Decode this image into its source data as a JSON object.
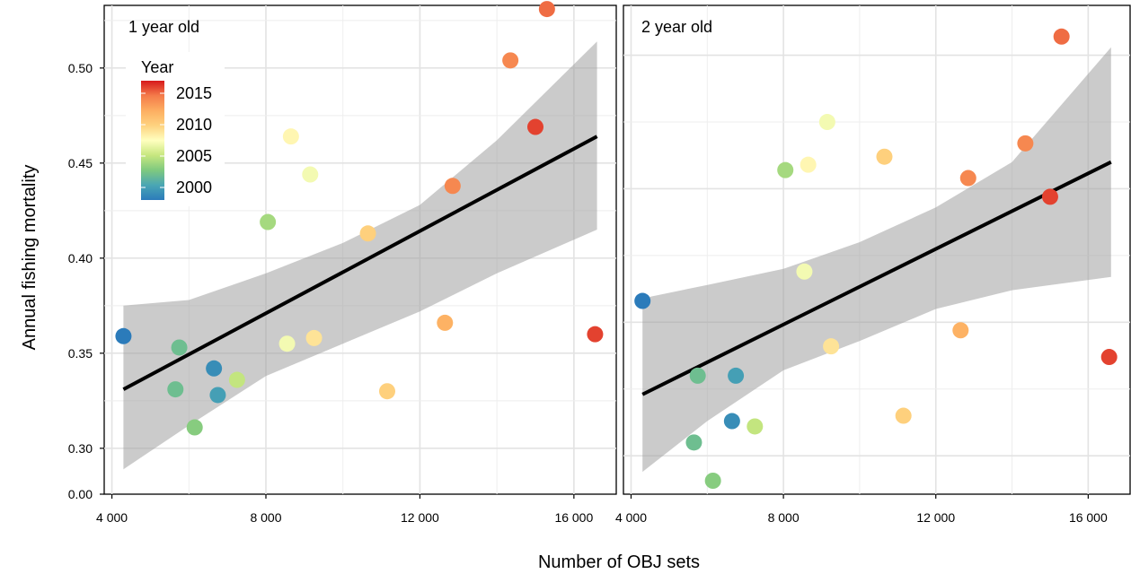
{
  "chart_data": {
    "type": "scatter",
    "xlabel": "Number of OBJ sets",
    "ylabel": "Annual fishing mortality",
    "xlim": [
      3800,
      17100
    ],
    "x_ticks": [
      4000,
      8000,
      12000,
      16000
    ],
    "x_tick_labels": [
      "4 000",
      "8 000",
      "12 000",
      "16 000"
    ],
    "y_ticks": [
      0.3,
      0.35,
      0.4,
      0.45,
      0.5
    ],
    "y_tick_labels": [
      "0.30",
      "0.35",
      "0.40",
      "0.45",
      "0.50"
    ],
    "y_break_label": "0.00",
    "grid": true,
    "legend": {
      "title": "Year",
      "placement": "top-left",
      "labels": [
        "2015",
        "2010",
        "2005",
        "2000"
      ],
      "label_years": [
        2015,
        2010,
        2005,
        2000
      ],
      "range": [
        1998,
        2017
      ],
      "colors": [
        "#2b7bba",
        "#4aa6b4",
        "#7fc97f",
        "#c7e77f",
        "#ffffbf",
        "#fed27f",
        "#fdae61",
        "#f47b4a",
        "#d7191c"
      ]
    },
    "panels": [
      {
        "title": "1 year old",
        "ylim": [
          0.282,
          0.532
        ],
        "fit": {
          "x0": 4300,
          "y0": 0.331,
          "x1": 16600,
          "y1": 0.464
        },
        "ci_x": [
          4300,
          6000,
          8000,
          10000,
          12000,
          14000,
          16600
        ],
        "ci_lower": [
          0.289,
          0.312,
          0.338,
          0.355,
          0.372,
          0.392,
          0.415
        ],
        "ci_upper": [
          0.375,
          0.378,
          0.392,
          0.408,
          0.428,
          0.462,
          0.514
        ],
        "points": [
          {
            "x": 4300,
            "y": 0.359,
            "year": 1998
          },
          {
            "x": 5750,
            "y": 0.353,
            "year": 2002
          },
          {
            "x": 5650,
            "y": 0.331,
            "year": 2002
          },
          {
            "x": 6150,
            "y": 0.311,
            "year": 2003
          },
          {
            "x": 6650,
            "y": 0.342,
            "year": 1999
          },
          {
            "x": 6750,
            "y": 0.328,
            "year": 2000
          },
          {
            "x": 7250,
            "y": 0.336,
            "year": 2005
          },
          {
            "x": 8050,
            "y": 0.419,
            "year": 2004
          },
          {
            "x": 8550,
            "y": 0.355,
            "year": 2007
          },
          {
            "x": 8650,
            "y": 0.464,
            "year": 2008
          },
          {
            "x": 9150,
            "y": 0.444,
            "year": 2007
          },
          {
            "x": 9250,
            "y": 0.358,
            "year": 2009
          },
          {
            "x": 10650,
            "y": 0.413,
            "year": 2010
          },
          {
            "x": 11150,
            "y": 0.33,
            "year": 2010
          },
          {
            "x": 12650,
            "y": 0.366,
            "year": 2012
          },
          {
            "x": 12850,
            "y": 0.438,
            "year": 2014
          },
          {
            "x": 14350,
            "y": 0.504,
            "year": 2014
          },
          {
            "x": 15000,
            "y": 0.469,
            "year": 2016
          },
          {
            "x": 15300,
            "y": 0.531,
            "year": 2015
          },
          {
            "x": 16550,
            "y": 0.36,
            "year": 2016
          }
        ]
      },
      {
        "title": "2 year old",
        "ylim": [
          0.29,
          0.468
        ],
        "fit": {
          "x0": 4300,
          "y0": 0.323,
          "x1": 16600,
          "y1": 0.41
        },
        "ci_x": [
          4300,
          6000,
          8000,
          10000,
          12000,
          14000,
          16600
        ],
        "ci_lower": [
          0.294,
          0.313,
          0.332,
          0.343,
          0.355,
          0.362,
          0.367
        ],
        "ci_upper": [
          0.359,
          0.364,
          0.37,
          0.38,
          0.393,
          0.41,
          0.453
        ],
        "points": [
          {
            "x": 4300,
            "y": 0.358,
            "year": 1998
          },
          {
            "x": 5750,
            "y": 0.33,
            "year": 2002
          },
          {
            "x": 5650,
            "y": 0.305,
            "year": 2002
          },
          {
            "x": 6150,
            "y": 0.285,
            "year": 2003
          },
          {
            "x": 6650,
            "y": 0.313,
            "year": 1999
          },
          {
            "x": 6750,
            "y": 0.33,
            "year": 2000
          },
          {
            "x": 7250,
            "y": 0.311,
            "year": 2005
          },
          {
            "x": 8050,
            "y": 0.407,
            "year": 2004
          },
          {
            "x": 8550,
            "y": 0.369,
            "year": 2007
          },
          {
            "x": 8650,
            "y": 0.409,
            "year": 2008
          },
          {
            "x": 9150,
            "y": 0.425,
            "year": 2007
          },
          {
            "x": 9250,
            "y": 0.341,
            "year": 2009
          },
          {
            "x": 10650,
            "y": 0.412,
            "year": 2010
          },
          {
            "x": 11150,
            "y": 0.315,
            "year": 2010
          },
          {
            "x": 12650,
            "y": 0.347,
            "year": 2012
          },
          {
            "x": 12850,
            "y": 0.404,
            "year": 2014
          },
          {
            "x": 14350,
            "y": 0.417,
            "year": 2014
          },
          {
            "x": 15000,
            "y": 0.397,
            "year": 2016
          },
          {
            "x": 15300,
            "y": 0.457,
            "year": 2015
          },
          {
            "x": 16550,
            "y": 0.337,
            "year": 2016
          }
        ]
      }
    ]
  }
}
